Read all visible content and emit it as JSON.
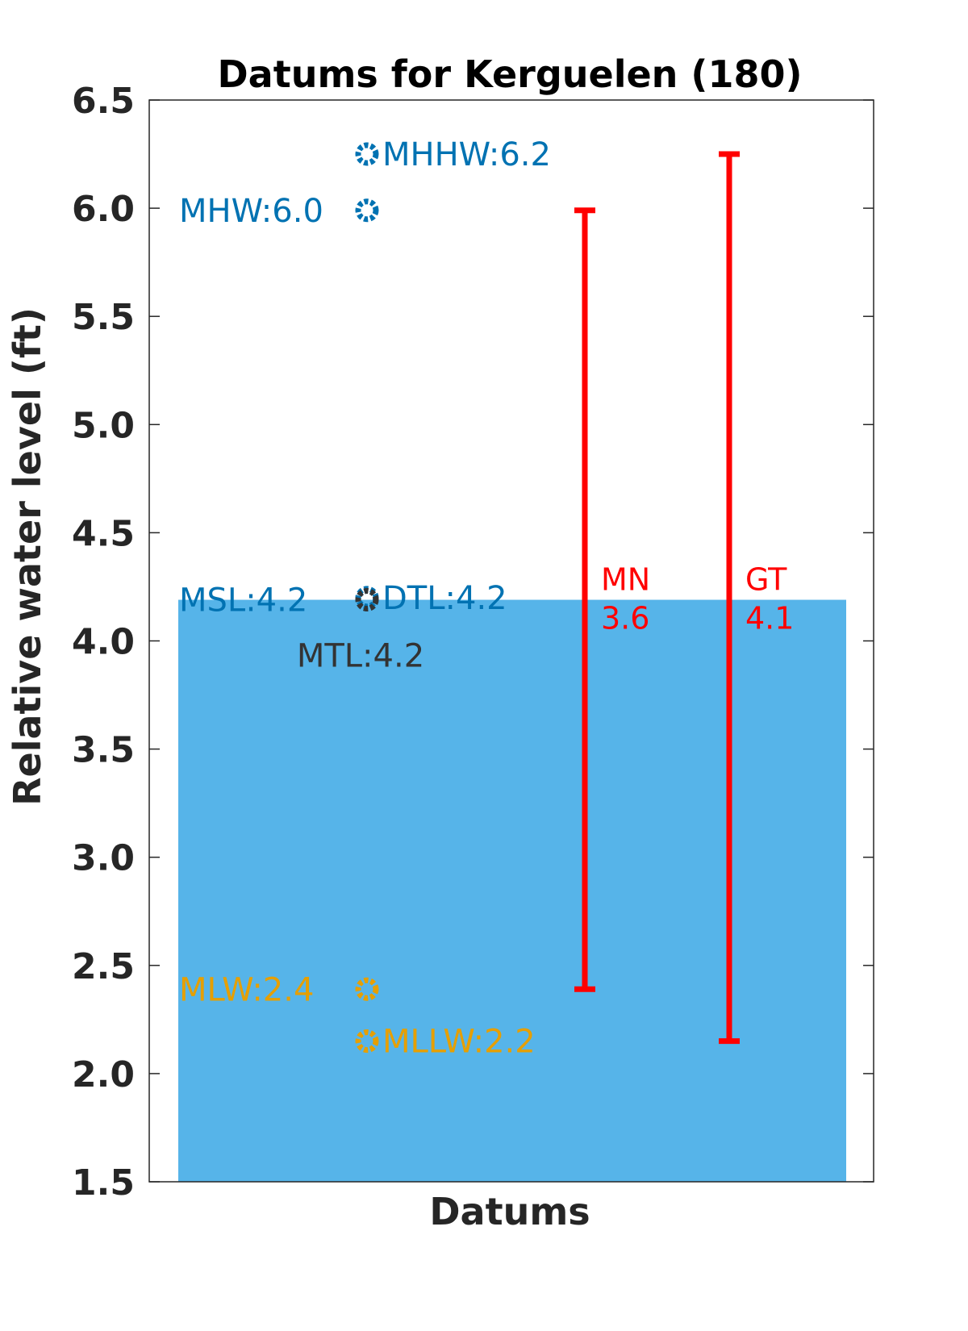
{
  "chart_data": {
    "type": "bar",
    "title": "Datums for Kerguelen (180)",
    "xlabel": "Datums",
    "ylabel": "Relative water level (ft)",
    "ylim": [
      1.5,
      6.5
    ],
    "yticks": [
      "1.5",
      "2.0",
      "2.5",
      "3.0",
      "3.5",
      "4.0",
      "4.5",
      "5.0",
      "5.5",
      "6.0",
      "6.5"
    ],
    "bar": {
      "value": 4.19,
      "color": "#56B4E9"
    },
    "datums": [
      {
        "name": "MHHW",
        "value": 6.25,
        "text": "MHHW:6.2",
        "color": "#0072B2",
        "label_side": "right"
      },
      {
        "name": "MHW",
        "value": 5.99,
        "text": "MHW:6.0",
        "color": "#0072B2",
        "label_side": "left"
      },
      {
        "name": "DTL",
        "value": 4.2,
        "text": "DTL:4.2",
        "color": "#0072B2",
        "label_side": "right"
      },
      {
        "name": "MSL",
        "value": 4.19,
        "text": "MSL:4.2",
        "color": "#0072B2",
        "label_side": "left"
      },
      {
        "name": "MTL",
        "value": 4.19,
        "text": "MTL:4.2",
        "color": "#333333",
        "label_side": "below"
      },
      {
        "name": "MLW",
        "value": 2.39,
        "text": "MLW:2.4",
        "color": "#E69F00",
        "label_side": "left"
      },
      {
        "name": "MLLW",
        "value": 2.15,
        "text": "MLLW:2.2",
        "color": "#E69F00",
        "label_side": "right"
      }
    ],
    "ranges": [
      {
        "name": "MN",
        "value_text": "3.6",
        "low": 2.39,
        "high": 5.99,
        "color": "#FF0000"
      },
      {
        "name": "GT",
        "value_text": "4.1",
        "low": 2.15,
        "high": 6.25,
        "color": "#FF0000"
      }
    ],
    "grid": false,
    "legend": "none"
  }
}
